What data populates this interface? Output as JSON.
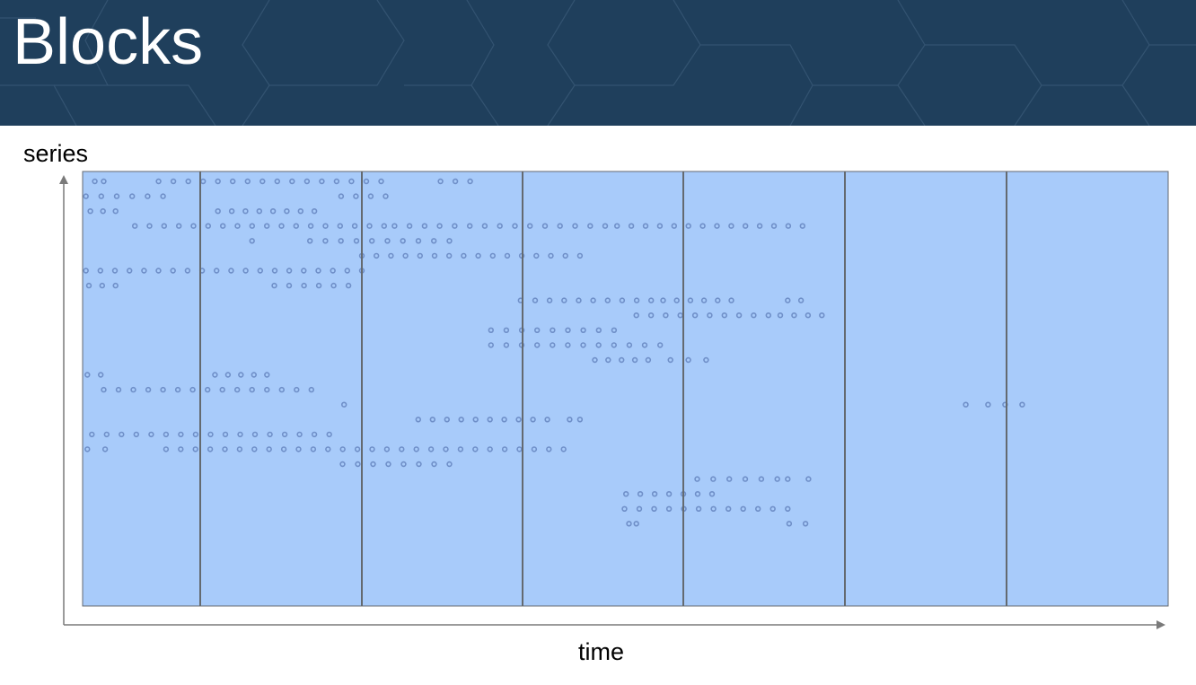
{
  "header": {
    "title": "Blocks"
  },
  "diagram": {
    "y_axis_label": "series",
    "x_axis_label": "time",
    "block_count": 7,
    "colors": {
      "header_bg": "#1f3f5c",
      "plot_bg": "#a8cbfa",
      "block_line": "#646a70",
      "sample_dot": "#6f8fc8",
      "axis": "#7a7a7a"
    },
    "series": [
      {
        "samples": [
          [
            0.7,
            1.3
          ],
          [
            5,
            20
          ],
          [
            24,
            26
          ]
        ]
      },
      {
        "samples": [
          [
            0.1,
            5.3
          ],
          [
            17.3,
            20.3
          ]
        ]
      },
      {
        "samples": [
          [
            0.4,
            2.1
          ],
          [
            9,
            15.5
          ]
        ]
      },
      {
        "samples": [
          [
            3.4,
            20.2
          ],
          [
            20.9,
            35.1
          ],
          [
            35.9,
            48.4
          ]
        ]
      },
      {
        "samples": [
          [
            11.3,
            11.3
          ],
          [
            15.2,
            24.6
          ]
        ]
      },
      {
        "samples": [
          [
            18.7,
            33.4
          ]
        ]
      },
      {
        "samples": [
          [
            0.1,
            18.7
          ]
        ]
      },
      {
        "samples": [
          [
            0.3,
            2.1
          ],
          [
            12.8,
            17.8
          ]
        ]
      },
      {
        "samples": [
          [
            29.4,
            38.2
          ],
          [
            39,
            43.6
          ],
          [
            47.4,
            48.3
          ]
        ]
      },
      {
        "samples": [
          [
            37.2,
            46.1
          ],
          [
            46.9,
            49.7
          ]
        ]
      },
      {
        "samples": [
          [
            27.4,
            35.7
          ]
        ]
      },
      {
        "samples": [
          [
            27.4,
            38.8
          ]
        ]
      },
      {
        "samples": [
          [
            34.4,
            38
          ],
          [
            39.5,
            41.9
          ]
        ]
      },
      {
        "samples": [
          [
            0.2,
            1.1
          ],
          [
            8.8,
            12.3
          ]
        ]
      },
      {
        "samples": [
          [
            1.3,
            15.3
          ]
        ]
      },
      {
        "samples": [
          [
            17.5,
            17.6
          ],
          [
            59.4,
            59.6
          ],
          [
            60.9,
            63.2
          ]
        ]
      },
      {
        "samples": [
          [
            22.5,
            31.2
          ],
          [
            32.7,
            33.4
          ]
        ]
      },
      {
        "samples": [
          [
            0.5,
            16.5
          ]
        ]
      },
      {
        "samples": [
          [
            0.2,
            1.4
          ],
          [
            5.5,
            32.3
          ]
        ]
      },
      {
        "samples": [
          [
            17.4,
            24.6
          ]
        ]
      },
      {
        "samples": [
          [
            41.3,
            46.7
          ],
          [
            47.4,
            48.8
          ]
        ]
      },
      {
        "samples": [
          [
            36.5,
            42.3
          ]
        ]
      },
      {
        "samples": [
          [
            36.4,
            47.4
          ]
        ]
      },
      {
        "samples": [
          [
            36.7,
            37.2
          ],
          [
            47.5,
            48.6
          ]
        ]
      }
    ]
  }
}
